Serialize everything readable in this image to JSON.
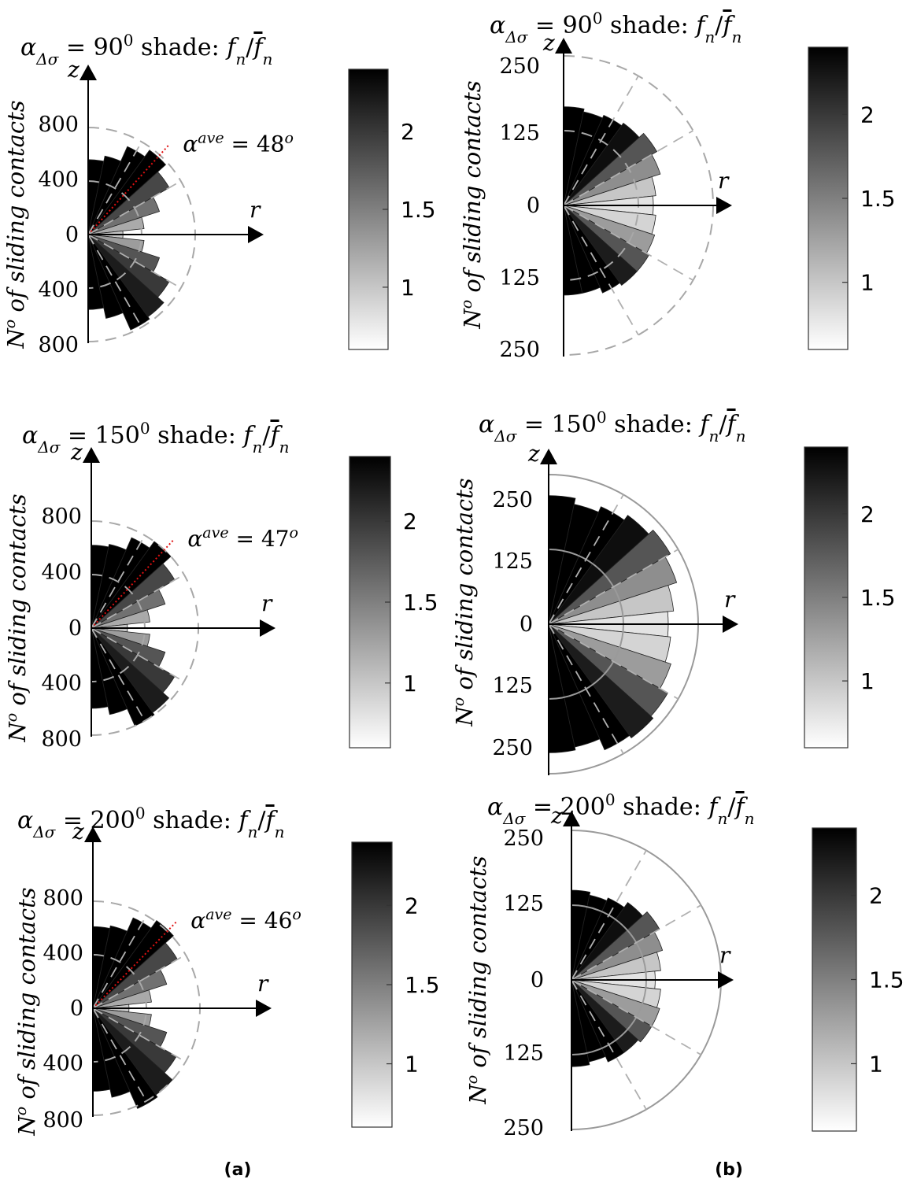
{
  "panel_labels": [
    "(a)",
    "(b)"
  ],
  "chart_data": [
    {
      "type": "polar-histogram",
      "title_prefix": "α",
      "title_sub": "Δσ",
      "title_value": "= 90",
      "title_sup": "0",
      "title_suffix": " shade:  f",
      "title_fn_sub": "n",
      "title_slash": "/",
      "title_fbar": "f",
      "title_fbar_sub": "n",
      "ylabel": "No of sliding contacts",
      "axis_z": "z",
      "axis_r": "r",
      "rmax": 1000,
      "rings": [
        400,
        800
      ],
      "ring_style": "dashed",
      "ticks_top": [
        "0",
        "400",
        "800"
      ],
      "ticks_bottom": [
        "400",
        "800"
      ],
      "average_angle_label": "αave = 48o",
      "average_angle_deg": 48,
      "bin_angles_deg": [
        84,
        72,
        60,
        48,
        36,
        24,
        12,
        0,
        -12,
        -24,
        -36,
        -48,
        -60,
        -72,
        -84
      ],
      "values": [
        560,
        600,
        720,
        780,
        700,
        560,
        420,
        260,
        420,
        560,
        700,
        760,
        780,
        640,
        560
      ],
      "shade": [
        2.4,
        2.4,
        2.4,
        2.4,
        1.9,
        1.6,
        1.2,
        1.0,
        1.3,
        1.8,
        2.0,
        2.2,
        2.4,
        2.4,
        2.4
      ],
      "colorbar": {
        "min": 0.6,
        "max": 2.4,
        "ticks": [
          1,
          1.5,
          2
        ],
        "tick_labels": [
          "1",
          "1.5",
          "2"
        ]
      }
    },
    {
      "type": "polar-histogram",
      "title_prefix": "α",
      "title_sub": "Δσ",
      "title_value": "= 90",
      "title_sup": "0",
      "title_suffix": " shade:  f",
      "title_fn_sub": "n",
      "title_slash": "/",
      "title_fbar": "f",
      "title_fbar_sub": "n",
      "ylabel": "No of sliding contacts",
      "axis_z": "z",
      "axis_r": "r",
      "rmax": 250,
      "rings": [
        125,
        250
      ],
      "ring_style": "dashed",
      "ticks_top": [
        "0",
        "125",
        "250"
      ],
      "ticks_bottom": [
        "125",
        "250"
      ],
      "average_angle_label": "",
      "bin_angles_deg": [
        84,
        72,
        60,
        48,
        36,
        24,
        12,
        0,
        -12,
        -24,
        -36,
        -48,
        -60,
        -72,
        -84
      ],
      "values": [
        165,
        160,
        165,
        170,
        180,
        170,
        155,
        150,
        155,
        160,
        165,
        165,
        160,
        150,
        150
      ],
      "shade": [
        2.4,
        2.4,
        2.4,
        2.3,
        1.8,
        1.4,
        1.0,
        0.8,
        0.9,
        1.3,
        1.8,
        2.2,
        2.4,
        2.4,
        2.4
      ],
      "colorbar": {
        "min": 0.6,
        "max": 2.4,
        "ticks": [
          1,
          1.5,
          2
        ],
        "tick_labels": [
          "1",
          "1.5",
          "2"
        ]
      }
    },
    {
      "type": "polar-histogram",
      "title_prefix": "α",
      "title_sub": "Δσ",
      "title_value": "= 150",
      "title_sup": "0",
      "title_suffix": " shade:  f",
      "title_fn_sub": "n",
      "title_slash": "/",
      "title_fbar": "f",
      "title_fbar_sub": "n",
      "ylabel": "No of sliding contacts",
      "axis_z": "z",
      "axis_r": "r",
      "rmax": 1000,
      "rings": [
        400,
        800
      ],
      "ring_style": "dashed",
      "ticks_top": [
        "0",
        "400",
        "800"
      ],
      "ticks_bottom": [
        "400",
        "800"
      ],
      "average_angle_label": "αave = 47o",
      "average_angle_deg": 47,
      "bin_angles_deg": [
        84,
        72,
        60,
        48,
        36,
        24,
        12,
        0,
        -12,
        -24,
        -36,
        -48,
        -60,
        -72,
        -84
      ],
      "values": [
        620,
        640,
        740,
        800,
        720,
        580,
        440,
        270,
        440,
        580,
        720,
        780,
        800,
        660,
        600
      ],
      "shade": [
        2.4,
        2.4,
        2.4,
        2.4,
        1.9,
        1.6,
        1.2,
        1.0,
        1.3,
        1.8,
        2.0,
        2.2,
        2.4,
        2.4,
        2.4
      ],
      "colorbar": {
        "min": 0.6,
        "max": 2.4,
        "ticks": [
          1,
          1.5,
          2
        ],
        "tick_labels": [
          "1",
          "1.5",
          "2"
        ]
      }
    },
    {
      "type": "polar-histogram",
      "title_prefix": "α",
      "title_sub": "Δσ",
      "title_value": "= 150",
      "title_sup": "0",
      "title_suffix": " shade:  f",
      "title_fn_sub": "n",
      "title_slash": "/",
      "title_fbar": "f",
      "title_fbar_sub": "n",
      "ylabel": "No of sliding contacts",
      "axis_z": "z",
      "axis_r": "r",
      "rmax": 250,
      "rings": [
        125,
        250
      ],
      "ring_style": "solid",
      "ticks_top": [
        "0",
        "125",
        "250"
      ],
      "ticks_bottom": [
        "125",
        "250"
      ],
      "average_angle_label": "",
      "bin_angles_deg": [
        84,
        72,
        60,
        48,
        36,
        24,
        12,
        0,
        -12,
        -24,
        -36,
        -48,
        -60,
        -72,
        -84
      ],
      "values": [
        215,
        205,
        215,
        225,
        235,
        225,
        210,
        200,
        205,
        215,
        230,
        235,
        230,
        210,
        215
      ],
      "shade": [
        2.4,
        2.4,
        2.4,
        2.3,
        1.8,
        1.4,
        1.0,
        0.8,
        0.9,
        1.3,
        1.8,
        2.2,
        2.4,
        2.4,
        2.4
      ],
      "colorbar": {
        "min": 0.6,
        "max": 2.4,
        "ticks": [
          1,
          1.5,
          2
        ],
        "tick_labels": [
          "1",
          "1.5",
          "2"
        ]
      }
    },
    {
      "type": "polar-histogram",
      "title_prefix": "α",
      "title_sub": "Δσ",
      "title_value": "= 200",
      "title_sup": "0",
      "title_suffix": " shade:  f",
      "title_fn_sub": "n",
      "title_slash": "/",
      "title_fbar": "f",
      "title_fbar_sub": "n",
      "ylabel": "No of sliding contacts",
      "axis_z": "z",
      "axis_r": "r",
      "rmax": 1000,
      "rings": [
        400,
        800
      ],
      "ring_style": "dashed",
      "ticks_top": [
        "0",
        "400",
        "800"
      ],
      "ticks_bottom": [
        "400",
        "800"
      ],
      "average_angle_label": "αave = 46o",
      "average_angle_deg": 46,
      "bin_angles_deg": [
        84,
        72,
        60,
        48,
        36,
        24,
        12,
        0,
        -12,
        -24,
        -36,
        -48,
        -60,
        -72,
        -84
      ],
      "values": [
        610,
        630,
        740,
        810,
        730,
        580,
        440,
        270,
        440,
        580,
        720,
        800,
        820,
        680,
        620
      ],
      "shade": [
        2.4,
        2.4,
        2.4,
        2.4,
        1.9,
        1.6,
        1.2,
        1.0,
        1.3,
        1.8,
        2.0,
        2.2,
        2.4,
        2.4,
        2.4
      ],
      "colorbar": {
        "min": 0.6,
        "max": 2.4,
        "ticks": [
          1,
          1.5,
          2
        ],
        "tick_labels": [
          "1",
          "1.5",
          "2"
        ]
      }
    },
    {
      "type": "polar-histogram",
      "title_prefix": "α",
      "title_sub": "Δσ",
      "title_value": "= 200",
      "title_sup": "0",
      "title_suffix": " shade:  f",
      "title_fn_sub": "n",
      "title_slash": "/",
      "title_fbar": "f",
      "title_fbar_sub": "n",
      "ylabel": "No of sliding contacts",
      "axis_z": "z",
      "axis_r": "r",
      "rmax": 250,
      "rings": [
        125,
        250
      ],
      "ring_style": "solid",
      "ticks_top": [
        "0",
        "125",
        "250"
      ],
      "ticks_bottom": [
        "125",
        "250"
      ],
      "average_angle_label": "",
      "bin_angles_deg": [
        84,
        72,
        60,
        48,
        36,
        24,
        12,
        0,
        -12,
        -24,
        -36,
        -48,
        -60,
        -72,
        -84
      ],
      "values": [
        150,
        145,
        150,
        160,
        170,
        160,
        150,
        140,
        150,
        155,
        155,
        150,
        150,
        140,
        145
      ],
      "shade": [
        2.4,
        2.4,
        2.4,
        2.3,
        1.8,
        1.4,
        1.0,
        0.8,
        0.9,
        1.3,
        1.8,
        2.2,
        2.4,
        2.4,
        2.4
      ],
      "colorbar": {
        "min": 0.6,
        "max": 2.4,
        "ticks": [
          1,
          1.5,
          2
        ],
        "tick_labels": [
          "1",
          "1.5",
          "2"
        ]
      }
    }
  ]
}
